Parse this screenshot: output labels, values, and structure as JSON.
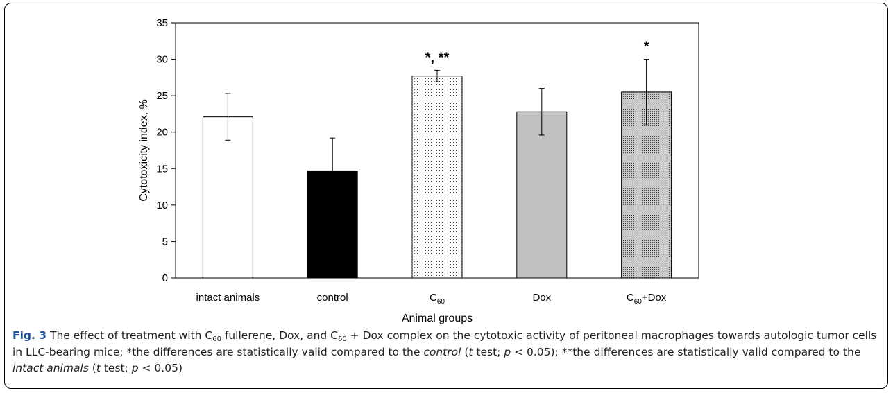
{
  "chart_data": {
    "type": "bar",
    "xlabel": "Animal groups",
    "ylabel": "Cytotoxicity index, %",
    "ylim": [
      0,
      35
    ],
    "ytick_step": 5,
    "yticks": [
      "0",
      "5",
      "10",
      "15",
      "20",
      "25",
      "30",
      "35"
    ],
    "grid": false,
    "categories": [
      {
        "label": "intact animals",
        "sub": "",
        "suffix": ""
      },
      {
        "label": "control",
        "sub": "",
        "suffix": ""
      },
      {
        "label": "C",
        "sub": "60",
        "suffix": ""
      },
      {
        "label": "Dox",
        "sub": "",
        "suffix": ""
      },
      {
        "label": "C",
        "sub": "60",
        "suffix": "+Dox"
      }
    ],
    "values": [
      22.1,
      14.7,
      27.7,
      22.8,
      25.5
    ],
    "errors": [
      3.2,
      4.5,
      0.8,
      3.2,
      4.5
    ],
    "annotations": [
      "",
      "",
      "*, **",
      "",
      "*"
    ],
    "fills": [
      "white",
      "black",
      "light-dots",
      "gray",
      "dark-dots"
    ],
    "colors": {
      "black": "#000000",
      "gray": "#c0c0c0",
      "dotted_bg_light": "#ffffff",
      "dotted_bg_dark": "#c8c8c8"
    }
  },
  "caption": {
    "fig_label": "Fig. 3",
    "parts": [
      {
        "t": " The effect of treatment with C",
        "s": ""
      },
      {
        "t": "60",
        "s": "sub"
      },
      {
        "t": " fullerene, Dox, and C",
        "s": ""
      },
      {
        "t": "60",
        "s": "sub"
      },
      {
        "t": " + Dox complex on the cytotoxic activity of peritoneal macrophages towards autologic tumor cells in LLC-bearing mice; *the differences are statistically valid compared to the ",
        "s": ""
      },
      {
        "t": "control",
        "s": "i"
      },
      {
        "t": " (",
        "s": ""
      },
      {
        "t": "t",
        "s": "i"
      },
      {
        "t": " test; ",
        "s": ""
      },
      {
        "t": "p",
        "s": "i"
      },
      {
        "t": " < 0.05); **the differences are statistically valid compared to the ",
        "s": ""
      },
      {
        "t": "intact animals",
        "s": "i"
      },
      {
        "t": " (",
        "s": ""
      },
      {
        "t": "t",
        "s": "i"
      },
      {
        "t": " test; ",
        "s": ""
      },
      {
        "t": "p",
        "s": "i"
      },
      {
        "t": " < 0.05)",
        "s": ""
      }
    ]
  }
}
